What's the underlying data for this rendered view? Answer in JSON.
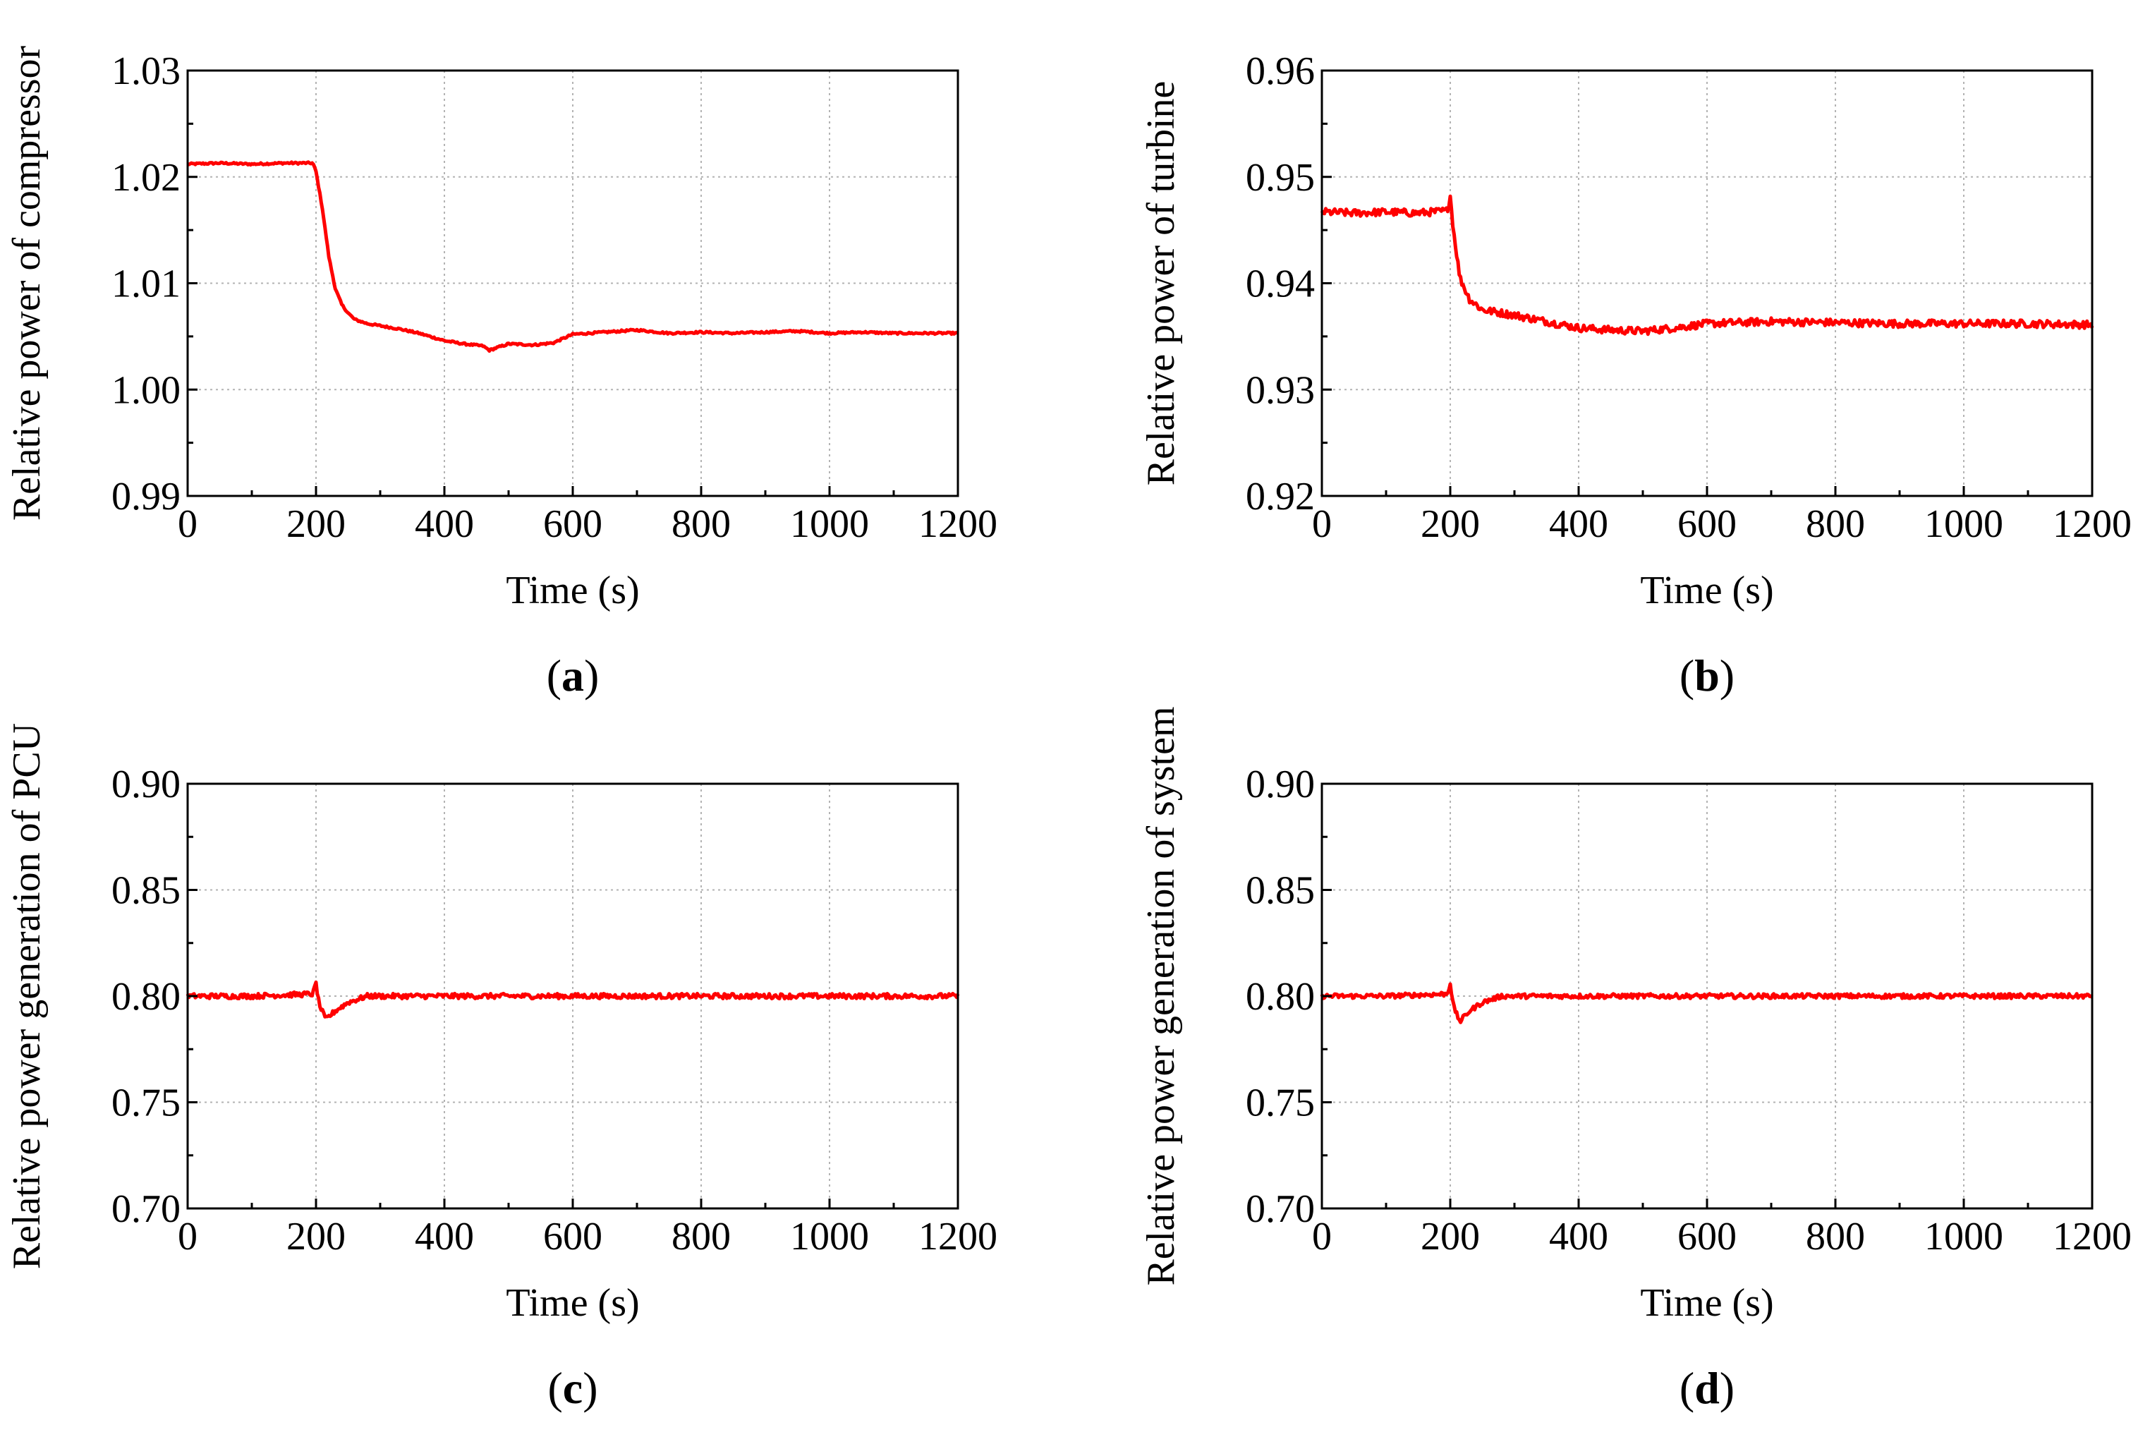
{
  "colors": {
    "line": "#ff0000",
    "axis": "#000000",
    "grid": "#b3b3b3",
    "background": "#ffffff"
  },
  "chart_data": [
    {
      "type": "line",
      "panel": "a",
      "panel_label": {
        "open": "(",
        "letter": "a",
        "close": ")"
      },
      "xlabel": "Time (s)",
      "ylabel": "Relative power of compressor",
      "xlim": [
        0,
        1200
      ],
      "ylim": [
        0.99,
        1.03
      ],
      "xticks": [
        0,
        200,
        400,
        600,
        800,
        1000,
        1200
      ],
      "xtick_labels": [
        "0",
        "200",
        "400",
        "600",
        "800",
        "1000",
        "1200"
      ],
      "yticks": [
        0.99,
        1.0,
        1.01,
        1.02,
        1.03
      ],
      "ytick_labels": [
        "0.99",
        "1.00",
        "1.01",
        "1.02",
        "1.03"
      ],
      "grid": true,
      "series": [
        {
          "name": "compressor",
          "x": [
            0,
            50,
            100,
            150,
            195,
            200,
            210,
            220,
            230,
            240,
            250,
            260,
            280,
            300,
            330,
            360,
            400,
            430,
            460,
            470,
            500,
            540,
            570,
            600,
            650,
            700,
            750,
            800,
            850,
            900,
            950,
            1000,
            1050,
            1100,
            1150,
            1200
          ],
          "y": [
            1.0212,
            1.0213,
            1.0212,
            1.0213,
            1.0213,
            1.0205,
            1.017,
            1.0125,
            1.0095,
            1.008,
            1.0072,
            1.0066,
            1.0062,
            1.006,
            1.0057,
            1.0053,
            1.0046,
            1.0043,
            1.0041,
            1.0037,
            1.0043,
            1.0042,
            1.0044,
            1.0052,
            1.0054,
            1.0056,
            1.0053,
            1.0054,
            1.0053,
            1.0054,
            1.0055,
            1.0053,
            1.0054,
            1.0053,
            1.0053,
            1.0053
          ]
        }
      ]
    },
    {
      "type": "line",
      "panel": "b",
      "panel_label": {
        "open": "(",
        "letter": "b",
        "close": ")"
      },
      "xlabel": "Time (s)",
      "ylabel": "Relative power of turbine",
      "xlim": [
        0,
        1200
      ],
      "ylim": [
        0.92,
        0.96
      ],
      "xticks": [
        0,
        200,
        400,
        600,
        800,
        1000,
        1200
      ],
      "xtick_labels": [
        "0",
        "200",
        "400",
        "600",
        "800",
        "1000",
        "1200"
      ],
      "yticks": [
        0.92,
        0.93,
        0.94,
        0.95,
        0.96
      ],
      "ytick_labels": [
        "0.92",
        "0.93",
        "0.94",
        "0.95",
        "0.96"
      ],
      "grid": true,
      "series": [
        {
          "name": "turbine",
          "x": [
            0,
            50,
            100,
            150,
            195,
            200,
            205,
            215,
            230,
            250,
            280,
            300,
            350,
            400,
            450,
            500,
            550,
            600,
            700,
            800,
            900,
            1000,
            1100,
            1200
          ],
          "y": [
            0.9467,
            0.9466,
            0.9467,
            0.9466,
            0.9468,
            0.9482,
            0.945,
            0.9405,
            0.9385,
            0.9375,
            0.9372,
            0.937,
            0.9364,
            0.9358,
            0.9356,
            0.9355,
            0.9358,
            0.9362,
            0.9364,
            0.9363,
            0.9362,
            0.9362,
            0.9362,
            0.9361
          ]
        }
      ]
    },
    {
      "type": "line",
      "panel": "c",
      "panel_label": {
        "open": "(",
        "letter": "c",
        "close": ")"
      },
      "xlabel": "Time (s)",
      "ylabel": "Relative power generation of PCU",
      "xlim": [
        0,
        1200
      ],
      "ylim": [
        0.7,
        0.9
      ],
      "xticks": [
        0,
        200,
        400,
        600,
        800,
        1000,
        1200
      ],
      "xtick_labels": [
        "0",
        "200",
        "400",
        "600",
        "800",
        "1000",
        "1200"
      ],
      "yticks": [
        0.7,
        0.75,
        0.8,
        0.85,
        0.9
      ],
      "ytick_labels": [
        "0.70",
        "0.75",
        "0.80",
        "0.85",
        "0.90"
      ],
      "grid": true,
      "series": [
        {
          "name": "PCU",
          "x": [
            0,
            100,
            195,
            200,
            205,
            215,
            230,
            250,
            280,
            320,
            400,
            500,
            600,
            800,
            1000,
            1200
          ],
          "y": [
            0.8,
            0.8,
            0.801,
            0.806,
            0.796,
            0.789,
            0.793,
            0.797,
            0.8,
            0.8,
            0.8,
            0.8,
            0.8,
            0.8,
            0.8,
            0.8
          ]
        }
      ]
    },
    {
      "type": "line",
      "panel": "d",
      "panel_label": {
        "open": "(",
        "letter": "d",
        "close": ")"
      },
      "xlabel": "Time (s)",
      "ylabel": "Relative power generation of system",
      "xlim": [
        0,
        1200
      ],
      "ylim": [
        0.7,
        0.9
      ],
      "xticks": [
        0,
        200,
        400,
        600,
        800,
        1000,
        1200
      ],
      "xtick_labels": [
        "0",
        "200",
        "400",
        "600",
        "800",
        "1000",
        "1200"
      ],
      "yticks": [
        0.7,
        0.75,
        0.8,
        0.85,
        0.9
      ],
      "ytick_labels": [
        "0.70",
        "0.75",
        "0.80",
        "0.85",
        "0.90"
      ],
      "grid": true,
      "series": [
        {
          "name": "system",
          "x": [
            0,
            100,
            195,
            200,
            205,
            215,
            230,
            250,
            280,
            320,
            400,
            500,
            600,
            800,
            1000,
            1200
          ],
          "y": [
            0.8,
            0.8,
            0.801,
            0.806,
            0.795,
            0.788,
            0.793,
            0.797,
            0.8,
            0.8,
            0.8,
            0.8,
            0.8,
            0.8,
            0.8,
            0.8
          ]
        }
      ]
    }
  ]
}
